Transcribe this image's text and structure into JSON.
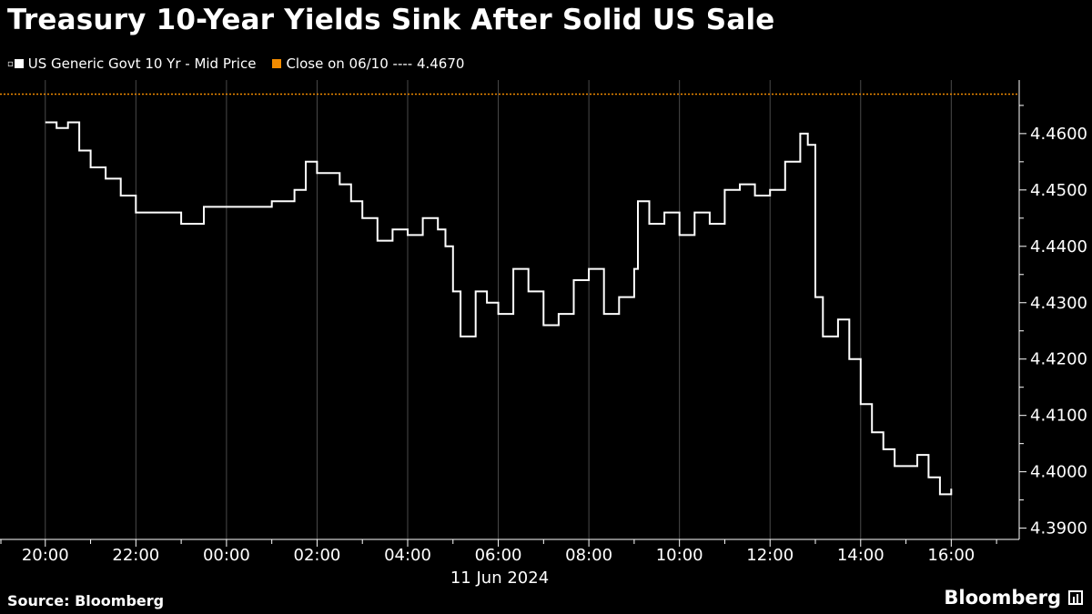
{
  "header": {
    "title": "Treasury 10-Year Yields Sink After Solid US Sale"
  },
  "legend": {
    "series_label": "US Generic Govt 10 Yr - Mid Price",
    "reference_label": "Close on 06/10 ---- 4.4670"
  },
  "footer": {
    "source": "Source: Bloomberg",
    "brand": "Bloomberg"
  },
  "colors": {
    "background": "#000000",
    "series": "#ffffff",
    "reference": "#f28b00",
    "grid": "#4a4a4a"
  },
  "chart_data": {
    "type": "line",
    "title": "Treasury 10-Year Yields Sink After Solid US Sale",
    "xlabel": "",
    "ylabel": "",
    "x_date_label": "11 Jun 2024",
    "xlim": [
      "2024-06-10T19:00",
      "2024-06-11T17:30"
    ],
    "ylim": [
      4.388,
      4.4695
    ],
    "x_ticks": [
      "20:00",
      "22:00",
      "00:00",
      "02:00",
      "04:00",
      "06:00",
      "08:00",
      "10:00",
      "12:00",
      "14:00",
      "16:00"
    ],
    "y_ticks": [
      "4.3900",
      "4.4000",
      "4.4100",
      "4.4200",
      "4.4300",
      "4.4400",
      "4.4500",
      "4.4600"
    ],
    "grid": "vertical",
    "legend_position": "top-left",
    "reference_line": {
      "name": "Close on 06/10",
      "value": 4.467
    },
    "series": [
      {
        "name": "US Generic Govt 10 Yr - Mid Price",
        "points": [
          [
            "2024-06-10T20:00",
            4.462
          ],
          [
            "2024-06-10T20:15",
            4.461
          ],
          [
            "2024-06-10T20:30",
            4.462
          ],
          [
            "2024-06-10T20:45",
            4.457
          ],
          [
            "2024-06-10T21:00",
            4.454
          ],
          [
            "2024-06-10T21:20",
            4.452
          ],
          [
            "2024-06-10T21:40",
            4.449
          ],
          [
            "2024-06-10T22:00",
            4.446
          ],
          [
            "2024-06-10T22:30",
            4.446
          ],
          [
            "2024-06-10T23:00",
            4.444
          ],
          [
            "2024-06-10T23:30",
            4.447
          ],
          [
            "2024-06-11T00:00",
            4.447
          ],
          [
            "2024-06-11T00:30",
            4.447
          ],
          [
            "2024-06-11T01:00",
            4.448
          ],
          [
            "2024-06-11T01:30",
            4.45
          ],
          [
            "2024-06-11T01:45",
            4.455
          ],
          [
            "2024-06-11T02:00",
            4.453
          ],
          [
            "2024-06-11T02:30",
            4.451
          ],
          [
            "2024-06-11T02:45",
            4.448
          ],
          [
            "2024-06-11T03:00",
            4.445
          ],
          [
            "2024-06-11T03:20",
            4.441
          ],
          [
            "2024-06-11T03:40",
            4.443
          ],
          [
            "2024-06-11T04:00",
            4.442
          ],
          [
            "2024-06-11T04:20",
            4.445
          ],
          [
            "2024-06-11T04:40",
            4.443
          ],
          [
            "2024-06-11T04:50",
            4.44
          ],
          [
            "2024-06-11T05:00",
            4.432
          ],
          [
            "2024-06-11T05:10",
            4.424
          ],
          [
            "2024-06-11T05:30",
            4.432
          ],
          [
            "2024-06-11T05:45",
            4.43
          ],
          [
            "2024-06-11T06:00",
            4.428
          ],
          [
            "2024-06-11T06:20",
            4.436
          ],
          [
            "2024-06-11T06:40",
            4.432
          ],
          [
            "2024-06-11T07:00",
            4.426
          ],
          [
            "2024-06-11T07:20",
            4.428
          ],
          [
            "2024-06-11T07:40",
            4.434
          ],
          [
            "2024-06-11T08:00",
            4.436
          ],
          [
            "2024-06-11T08:20",
            4.428
          ],
          [
            "2024-06-11T08:40",
            4.431
          ],
          [
            "2024-06-11T09:00",
            4.436
          ],
          [
            "2024-06-11T09:05",
            4.448
          ],
          [
            "2024-06-11T09:20",
            4.444
          ],
          [
            "2024-06-11T09:40",
            4.446
          ],
          [
            "2024-06-11T10:00",
            4.442
          ],
          [
            "2024-06-11T10:20",
            4.446
          ],
          [
            "2024-06-11T10:40",
            4.444
          ],
          [
            "2024-06-11T11:00",
            4.45
          ],
          [
            "2024-06-11T11:20",
            4.451
          ],
          [
            "2024-06-11T11:40",
            4.449
          ],
          [
            "2024-06-11T12:00",
            4.45
          ],
          [
            "2024-06-11T12:20",
            4.455
          ],
          [
            "2024-06-11T12:40",
            4.46
          ],
          [
            "2024-06-11T12:50",
            4.458
          ],
          [
            "2024-06-11T13:00",
            4.431
          ],
          [
            "2024-06-11T13:10",
            4.424
          ],
          [
            "2024-06-11T13:30",
            4.427
          ],
          [
            "2024-06-11T13:45",
            4.42
          ],
          [
            "2024-06-11T14:00",
            4.412
          ],
          [
            "2024-06-11T14:15",
            4.407
          ],
          [
            "2024-06-11T14:30",
            4.404
          ],
          [
            "2024-06-11T14:45",
            4.401
          ],
          [
            "2024-06-11T15:00",
            4.401
          ],
          [
            "2024-06-11T15:15",
            4.403
          ],
          [
            "2024-06-11T15:30",
            4.399
          ],
          [
            "2024-06-11T15:45",
            4.396
          ],
          [
            "2024-06-11T16:00",
            4.397
          ]
        ]
      }
    ]
  }
}
